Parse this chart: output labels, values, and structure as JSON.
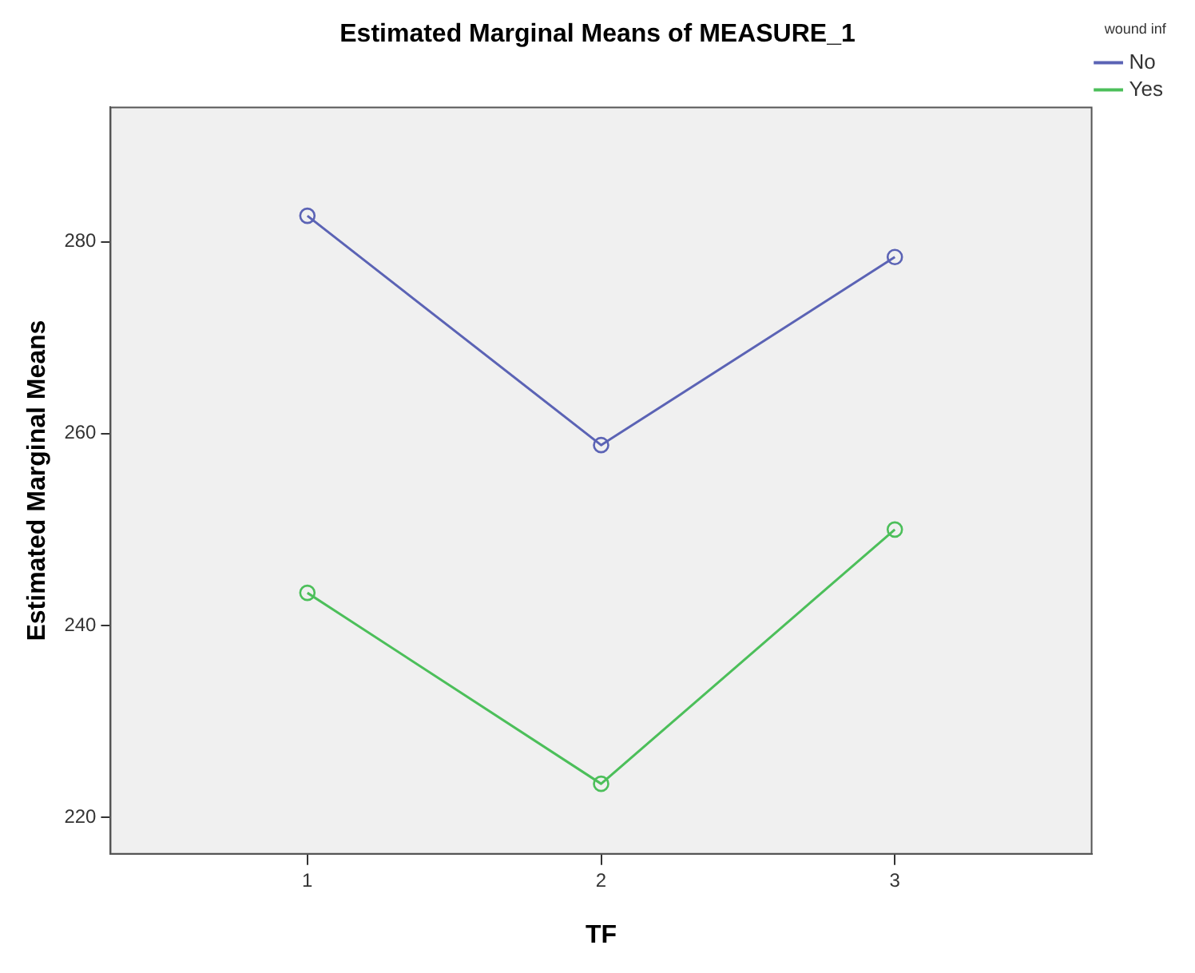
{
  "chart_data": {
    "type": "line",
    "title": "Estimated Marginal Means of MEASURE_1",
    "xlabel": "TF",
    "ylabel": "Estimated Marginal Means",
    "legend_title": "wound inf",
    "x": [
      1,
      2,
      3
    ],
    "series": [
      {
        "name": "No",
        "color": "#5b63b5",
        "values": [
          282.7,
          258.8,
          278.4
        ]
      },
      {
        "name": "Yes",
        "color": "#4cbf5a",
        "values": [
          243.4,
          223.5,
          250.0
        ]
      }
    ],
    "xlim": [
      0.33,
      3.67
    ],
    "xticks": [
      1,
      2,
      3
    ],
    "ylim": [
      216.2,
      294
    ],
    "yticks": [
      220,
      240,
      260,
      280
    ],
    "grid": false,
    "legend": "top right",
    "marker": "circle",
    "line_style": "solid"
  }
}
